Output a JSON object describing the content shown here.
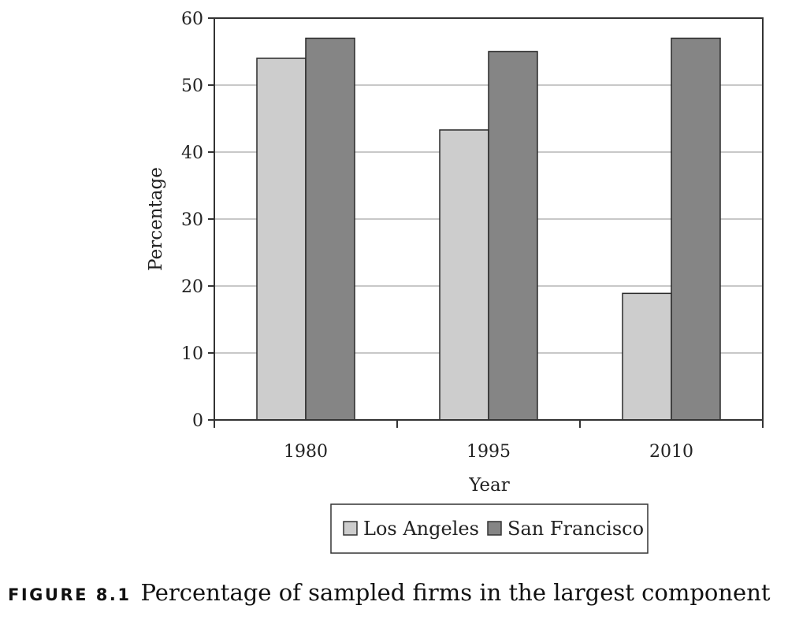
{
  "chart_data": {
    "type": "bar",
    "categories": [
      "1980",
      "1995",
      "2010"
    ],
    "series": [
      {
        "name": "Los Angeles",
        "values": [
          54,
          43.3,
          18.9
        ],
        "color": "#cdcdcd"
      },
      {
        "name": "San Francisco",
        "values": [
          57,
          55,
          57
        ],
        "color": "#858585"
      }
    ],
    "xlabel": "Year",
    "ylabel": "Percentage",
    "ylim": [
      0,
      60
    ],
    "yticks": [
      0,
      10,
      20,
      30,
      40,
      50,
      60
    ],
    "grid": true,
    "legend": "bottom-center"
  },
  "caption": {
    "label": "FIGURE 8.1",
    "text": "Percentage of sampled firms in the largest component"
  }
}
